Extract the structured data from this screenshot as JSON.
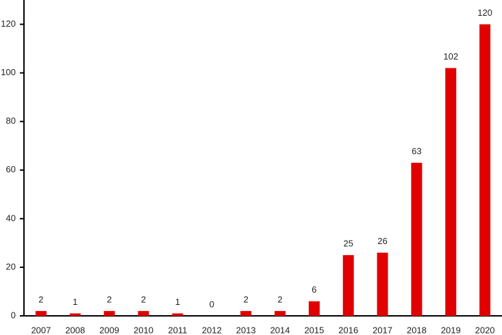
{
  "chart_data": {
    "type": "bar",
    "categories": [
      "2007",
      "2008",
      "2009",
      "2010",
      "2011",
      "2012",
      "2013",
      "2014",
      "2015",
      "2016",
      "2017",
      "2018",
      "2019",
      "2020"
    ],
    "values": [
      2,
      1,
      2,
      2,
      1,
      0,
      2,
      2,
      6,
      25,
      26,
      63,
      102,
      120
    ],
    "color": "#e00000",
    "ylim": [
      0,
      130
    ],
    "yticks": [
      0,
      20,
      40,
      60,
      80,
      100,
      120
    ],
    "grid": false
  }
}
